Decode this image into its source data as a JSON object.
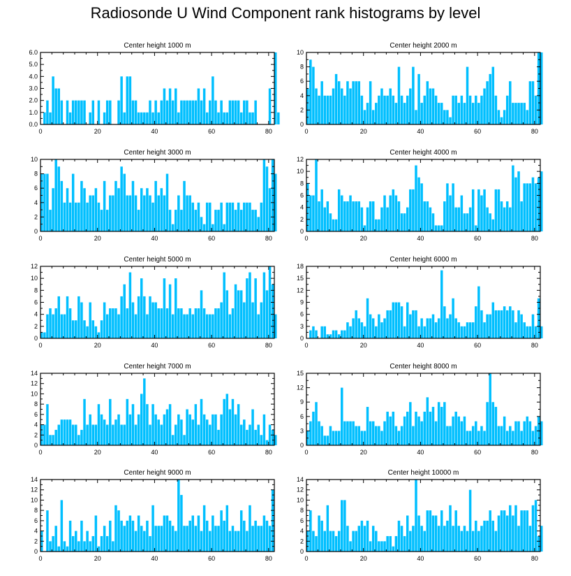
{
  "title": "Radiosonde U Wind Component rank histograms by level",
  "bar_color": "#00bfff",
  "chart_data": [
    {
      "type": "bar",
      "title": "Center height 1000 m",
      "xlim": [
        0,
        82
      ],
      "ylim": [
        0,
        6
      ],
      "yticks": [
        0,
        1,
        2,
        3,
        4,
        5,
        6
      ],
      "ytick_labels": [
        "0.0",
        "1.0",
        "2.0",
        "3.0",
        "4.0",
        "5.0",
        "6.0"
      ],
      "xticks": [
        0,
        20,
        40,
        60,
        80
      ],
      "xtick_labels": [
        "0",
        "20",
        "40",
        "60",
        "80"
      ],
      "values": [
        0,
        1,
        2,
        1,
        4,
        3,
        3,
        2,
        0,
        2,
        1,
        2,
        2,
        2,
        2,
        2,
        0,
        1,
        2,
        0,
        2,
        0,
        1,
        2,
        2,
        0,
        0,
        2,
        4,
        1,
        4,
        4,
        2,
        2,
        1,
        1,
        1,
        1,
        2,
        1,
        2,
        1,
        2,
        3,
        2,
        3,
        2,
        3,
        1,
        2,
        2,
        2,
        2,
        2,
        2,
        3,
        2,
        3,
        1,
        2,
        4,
        2,
        1,
        2,
        1,
        1,
        2,
        2,
        2,
        2,
        1,
        2,
        2,
        1,
        1,
        2,
        0,
        0,
        0,
        0,
        3,
        0,
        6,
        1
      ]
    },
    {
      "type": "bar",
      "title": "Center height 2000 m",
      "xlim": [
        0,
        82
      ],
      "ylim": [
        0,
        10
      ],
      "yticks": [
        0,
        2,
        4,
        6,
        8,
        10
      ],
      "ytick_labels": [
        "0",
        "2",
        "4",
        "6",
        "8",
        "10"
      ],
      "xticks": [
        0,
        20,
        40,
        60,
        80
      ],
      "xtick_labels": [
        "0",
        "20",
        "40",
        "60",
        "80"
      ],
      "values": [
        5,
        9,
        8,
        5,
        4,
        6,
        4,
        4,
        4,
        5,
        7,
        6,
        5,
        4,
        6,
        5,
        6,
        6,
        6,
        4,
        2,
        3,
        6,
        2,
        3,
        4,
        5,
        4,
        4,
        5,
        4,
        3,
        8,
        4,
        3,
        4,
        5,
        8,
        2,
        7,
        3,
        4,
        6,
        5,
        5,
        4,
        3,
        3,
        2,
        2,
        1,
        4,
        4,
        3,
        4,
        3,
        8,
        4,
        3,
        4,
        3,
        4,
        5,
        6,
        7,
        8,
        4,
        2,
        1,
        2,
        4,
        6,
        3,
        3,
        3,
        3,
        3,
        2,
        6,
        6,
        4,
        10,
        10
      ]
    },
    {
      "type": "bar",
      "title": "Center height 3000 m",
      "xlim": [
        0,
        82
      ],
      "ylim": [
        0,
        10
      ],
      "yticks": [
        0,
        2,
        4,
        6,
        8,
        10
      ],
      "ytick_labels": [
        "0",
        "2",
        "4",
        "6",
        "8",
        "10"
      ],
      "xticks": [
        0,
        20,
        40,
        60,
        80
      ],
      "xtick_labels": [
        "0",
        "20",
        "40",
        "60",
        "80"
      ],
      "values": [
        8,
        8,
        8,
        3,
        6,
        10,
        9,
        7,
        4,
        6,
        4,
        8,
        4,
        4,
        7,
        6,
        4,
        5,
        5,
        6,
        4,
        3,
        7,
        3,
        5,
        5,
        7,
        6,
        9,
        8,
        5,
        5,
        7,
        5,
        3,
        6,
        5,
        6,
        5,
        4,
        7,
        5,
        6,
        5,
        8,
        3,
        1,
        3,
        5,
        3,
        7,
        5,
        5,
        4,
        3,
        4,
        2,
        1,
        4,
        4,
        1,
        3,
        3,
        4,
        1,
        4,
        4,
        4,
        3,
        4,
        3,
        4,
        4,
        4,
        3,
        3,
        2,
        4,
        10,
        9,
        6,
        10,
        8
      ]
    },
    {
      "type": "bar",
      "title": "Center height 4000 m",
      "xlim": [
        0,
        82
      ],
      "ylim": [
        0,
        12
      ],
      "yticks": [
        0,
        2,
        4,
        6,
        8,
        10,
        12
      ],
      "ytick_labels": [
        "0",
        "2",
        "4",
        "6",
        "8",
        "10",
        "12"
      ],
      "xticks": [
        0,
        20,
        40,
        60,
        80
      ],
      "xtick_labels": [
        "0",
        "20",
        "40",
        "60",
        "80"
      ],
      "values": [
        8,
        6,
        6,
        12,
        5,
        7,
        4,
        5,
        3,
        2,
        2,
        7,
        6,
        5,
        5,
        6,
        5,
        5,
        5,
        4,
        1,
        4,
        5,
        5,
        2,
        2,
        4,
        6,
        4,
        6,
        7,
        6,
        5,
        3,
        3,
        4,
        7,
        7,
        11,
        9,
        8,
        5,
        5,
        4,
        3,
        1,
        1,
        1,
        5,
        8,
        6,
        8,
        4,
        4,
        6,
        3,
        3,
        4,
        7,
        1,
        7,
        6,
        7,
        4,
        3,
        2,
        7,
        7,
        5,
        4,
        5,
        4,
        11,
        9,
        10,
        5,
        8,
        8,
        8,
        9,
        8,
        9,
        10
      ]
    },
    {
      "type": "bar",
      "title": "Center height 5000 m",
      "xlim": [
        0,
        82
      ],
      "ylim": [
        0,
        12
      ],
      "yticks": [
        0,
        2,
        4,
        6,
        8,
        10,
        12
      ],
      "ytick_labels": [
        "0",
        "2",
        "4",
        "6",
        "8",
        "10",
        "12"
      ],
      "xticks": [
        0,
        20,
        40,
        60,
        80
      ],
      "xtick_labels": [
        "0",
        "20",
        "40",
        "60",
        "80"
      ],
      "values": [
        1,
        1,
        4,
        5,
        4,
        5,
        7,
        4,
        4,
        7,
        5,
        3,
        3,
        7,
        6,
        3,
        2,
        6,
        3,
        2,
        1,
        3,
        6,
        4,
        5,
        5,
        5,
        4,
        7,
        9,
        5,
        11,
        6,
        4,
        7,
        10,
        7,
        4,
        7,
        6,
        6,
        5,
        5,
        10,
        5,
        9,
        4,
        10,
        5,
        5,
        4,
        4,
        5,
        4,
        5,
        5,
        8,
        5,
        4,
        4,
        4,
        5,
        5,
        6,
        11,
        8,
        4,
        5,
        9,
        8,
        8,
        6,
        10,
        11,
        6,
        10,
        4,
        6,
        11,
        8,
        12,
        9,
        4
      ]
    },
    {
      "type": "bar",
      "title": "Center height 6000 m",
      "xlim": [
        0,
        82
      ],
      "ylim": [
        0,
        18
      ],
      "yticks": [
        0,
        3,
        6,
        9,
        12,
        15,
        18
      ],
      "ytick_labels": [
        "0",
        "3",
        "6",
        "9",
        "12",
        "15",
        "18"
      ],
      "xticks": [
        0,
        20,
        40,
        60,
        80
      ],
      "xtick_labels": [
        "0",
        "20",
        "40",
        "60",
        "80"
      ],
      "values": [
        0,
        2,
        3,
        2,
        0,
        3,
        3,
        1,
        1,
        2,
        2,
        1,
        2,
        2,
        4,
        3,
        5,
        7,
        5,
        4,
        3,
        10,
        6,
        5,
        3,
        6,
        4,
        5,
        7,
        7,
        9,
        9,
        9,
        8,
        3,
        9,
        6,
        7,
        7,
        3,
        5,
        3,
        5,
        5,
        6,
        4,
        5,
        17,
        8,
        5,
        6,
        10,
        5,
        4,
        3,
        3,
        4,
        4,
        4,
        8,
        13,
        7,
        4,
        6,
        6,
        9,
        7,
        7,
        7,
        8,
        7,
        8,
        7,
        4,
        7,
        6,
        4,
        3,
        3,
        6,
        3,
        10,
        3
      ]
    },
    {
      "type": "bar",
      "title": "Center height 7000 m",
      "xlim": [
        0,
        82
      ],
      "ylim": [
        0,
        14
      ],
      "yticks": [
        0,
        2,
        4,
        6,
        8,
        10,
        12,
        14
      ],
      "ytick_labels": [
        "0",
        "2",
        "4",
        "6",
        "8",
        "10",
        "12",
        "14"
      ],
      "xticks": [
        0,
        20,
        40,
        60,
        80
      ],
      "xtick_labels": [
        "0",
        "20",
        "40",
        "60",
        "80"
      ],
      "values": [
        4,
        4,
        8,
        2,
        2,
        3,
        4,
        5,
        5,
        5,
        5,
        4,
        4,
        2,
        3,
        9,
        4,
        6,
        4,
        4,
        8,
        6,
        5,
        4,
        9,
        4,
        5,
        6,
        4,
        4,
        9,
        6,
        8,
        4,
        6,
        10,
        13,
        8,
        4,
        8,
        6,
        5,
        4,
        6,
        7,
        8,
        2,
        4,
        6,
        5,
        2,
        7,
        6,
        5,
        8,
        4,
        9,
        6,
        5,
        4,
        6,
        6,
        3,
        6,
        9,
        10,
        7,
        9,
        6,
        8,
        4,
        5,
        3,
        4,
        7,
        3,
        4,
        2,
        6,
        1,
        4,
        3,
        2
      ]
    },
    {
      "type": "bar",
      "title": "Center height 8000 m",
      "xlim": [
        0,
        82
      ],
      "ylim": [
        0,
        15
      ],
      "yticks": [
        0,
        3,
        6,
        9,
        12,
        15
      ],
      "ytick_labels": [
        "0",
        "3",
        "6",
        "9",
        "12",
        "15"
      ],
      "xticks": [
        0,
        20,
        40,
        60,
        80
      ],
      "xtick_labels": [
        "0",
        "20",
        "40",
        "60",
        "80"
      ],
      "values": [
        3,
        5,
        7,
        9,
        5,
        4,
        2,
        2,
        4,
        3,
        3,
        3,
        12,
        5,
        5,
        5,
        5,
        4,
        4,
        3,
        3,
        8,
        5,
        5,
        4,
        4,
        3,
        5,
        7,
        6,
        7,
        4,
        3,
        4,
        6,
        7,
        9,
        4,
        7,
        6,
        5,
        7,
        10,
        7,
        8,
        5,
        9,
        8,
        9,
        4,
        4,
        6,
        7,
        6,
        5,
        6,
        3,
        3,
        4,
        5,
        3,
        4,
        3,
        9,
        15,
        9,
        8,
        4,
        4,
        6,
        3,
        4,
        3,
        5,
        5,
        3,
        5,
        6,
        5,
        3,
        4,
        6,
        5
      ]
    },
    {
      "type": "bar",
      "title": "Center height 9000 m",
      "xlim": [
        0,
        82
      ],
      "ylim": [
        0,
        14
      ],
      "yticks": [
        0,
        2,
        4,
        6,
        8,
        10,
        12,
        14
      ],
      "ytick_labels": [
        "0",
        "2",
        "4",
        "6",
        "8",
        "10",
        "12",
        "14"
      ],
      "xticks": [
        0,
        20,
        40,
        60,
        80
      ],
      "xtick_labels": [
        "0",
        "20",
        "40",
        "60",
        "80"
      ],
      "values": [
        4,
        0,
        8,
        2,
        3,
        5,
        1,
        10,
        2,
        1,
        6,
        3,
        4,
        2,
        6,
        2,
        4,
        2,
        3,
        7,
        1,
        3,
        5,
        3,
        6,
        2,
        9,
        8,
        6,
        5,
        6,
        7,
        6,
        4,
        7,
        5,
        4,
        6,
        3,
        9,
        5,
        5,
        5,
        7,
        7,
        6,
        5,
        4,
        14,
        11,
        5,
        5,
        6,
        7,
        5,
        7,
        4,
        9,
        6,
        4,
        7,
        5,
        5,
        8,
        6,
        9,
        4,
        5,
        4,
        4,
        8,
        6,
        4,
        9,
        5,
        6,
        5,
        5,
        7,
        6,
        5,
        12
      ]
    },
    {
      "type": "bar",
      "title": "Center height 10000 m",
      "xlim": [
        0,
        82
      ],
      "ylim": [
        0,
        14
      ],
      "yticks": [
        0,
        2,
        4,
        6,
        8,
        10,
        12,
        14
      ],
      "ytick_labels": [
        "0",
        "2",
        "4",
        "6",
        "8",
        "10",
        "12",
        "14"
      ],
      "xticks": [
        0,
        20,
        40,
        60,
        80
      ],
      "xtick_labels": [
        "0",
        "20",
        "40",
        "60",
        "80"
      ],
      "values": [
        4,
        8,
        4,
        3,
        7,
        6,
        4,
        9,
        4,
        4,
        3,
        4,
        10,
        10,
        5,
        2,
        4,
        4,
        5,
        6,
        5,
        6,
        2,
        5,
        4,
        2,
        2,
        2,
        3,
        3,
        1,
        3,
        6,
        5,
        3,
        7,
        4,
        5,
        14,
        7,
        5,
        4,
        8,
        8,
        7,
        7,
        5,
        8,
        5,
        6,
        9,
        5,
        8,
        5,
        4,
        5,
        4,
        12,
        4,
        6,
        4,
        5,
        6,
        6,
        8,
        6,
        4,
        7,
        8,
        8,
        7,
        9,
        7,
        9,
        5,
        8,
        8,
        8,
        5,
        9,
        10,
        3,
        5
      ]
    }
  ]
}
